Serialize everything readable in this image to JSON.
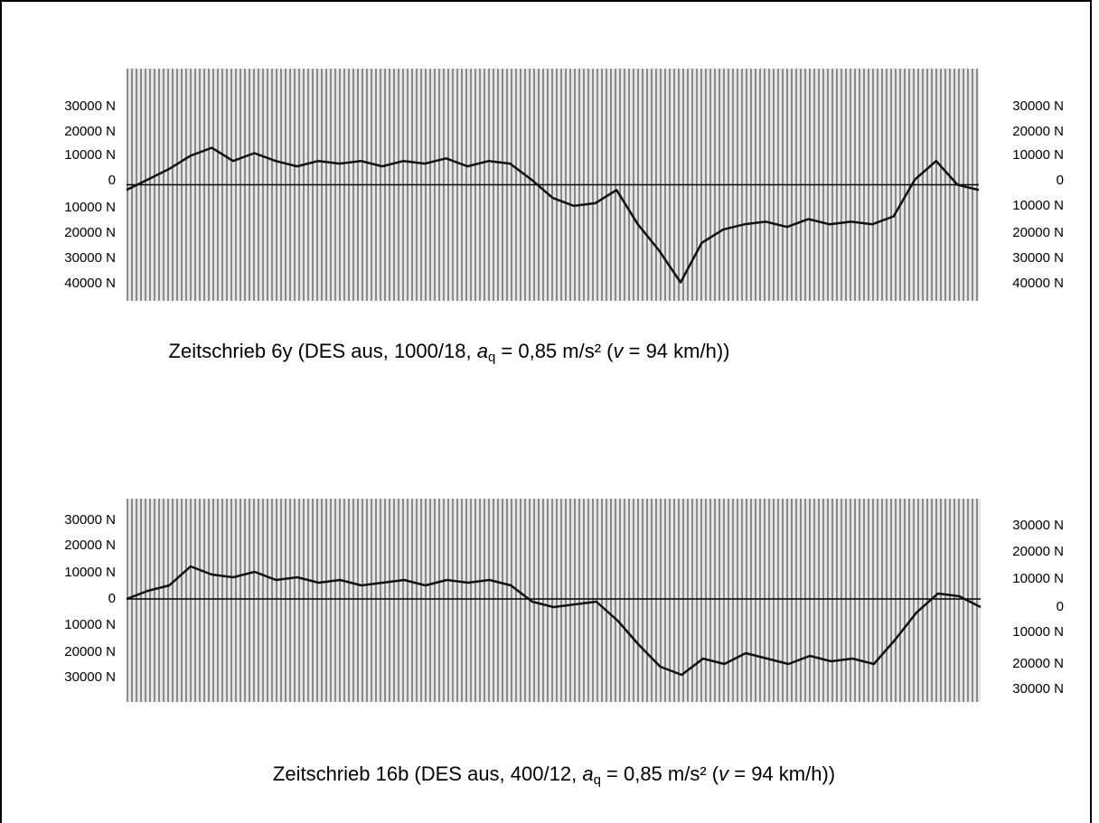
{
  "figures": [
    {
      "left_labels": [
        "30000 N",
        "20000 N",
        "10000 N",
        "0",
        "10000 N",
        "20000 N",
        "30000 N",
        "40000 N"
      ],
      "right_labels": [
        "30000 N",
        "20000 N",
        "10000 N",
        "0",
        "10000 N",
        "20000 N",
        "30000 N",
        "40000 N"
      ],
      "trace": {
        "ylim": [
          -44000,
          44000
        ],
        "values": [
          -2000,
          2000,
          6000,
          11000,
          14000,
          9000,
          12000,
          9000,
          7000,
          9000,
          8000,
          9000,
          7000,
          9000,
          8000,
          10000,
          7000,
          9000,
          8000,
          2000,
          -5000,
          -8000,
          -7000,
          -2000,
          -15000,
          -25000,
          -37000,
          -22000,
          -17000,
          -15000,
          -14000,
          -16000,
          -13000,
          -15000,
          -14000,
          -15000,
          -12000,
          2000,
          9000,
          0,
          -2000
        ]
      },
      "caption": {
        "prefix": "Zeitschrieb 6y (DES aus, 1000/18, ",
        "symbol": "a",
        "subscript": "q",
        "middle": " = 0,85 m/s² (",
        "speed_symbol": "v",
        "suffix": " = 94 km/h))"
      }
    },
    {
      "left_labels": [
        "30000 N",
        "20000 N",
        "10000 N",
        "0",
        "10000 N",
        "20000 N",
        "30000 N"
      ],
      "right_labels": [
        "30000 N",
        "20000 N",
        "10000 N",
        "0",
        "10000 N",
        "20000 N",
        "30000 N"
      ],
      "trace": {
        "ylim": [
          -38000,
          37000
        ],
        "values": [
          0,
          3000,
          5000,
          12000,
          9000,
          8000,
          10000,
          7000,
          8000,
          6000,
          7000,
          5000,
          6000,
          7000,
          5000,
          7000,
          6000,
          7000,
          5000,
          -1000,
          -3000,
          -2000,
          -1000,
          -8000,
          -17000,
          -25000,
          -28000,
          -22000,
          -24000,
          -20000,
          -22000,
          -24000,
          -21000,
          -23000,
          -22000,
          -24000,
          -15000,
          -5000,
          2000,
          1000,
          -3000
        ]
      },
      "caption": {
        "prefix": "Zeitschrieb 16b (DES aus, 400/12, ",
        "symbol": "a",
        "subscript": "q",
        "middle": " = 0,85 m/s² (",
        "speed_symbol": "v",
        "suffix": " = 94 km/h))"
      }
    }
  ]
}
